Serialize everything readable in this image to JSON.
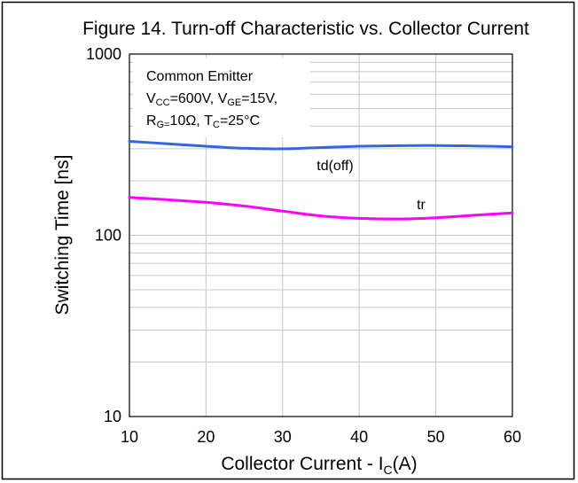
{
  "chart_data": {
    "type": "line",
    "title": "Figure 14. Turn-off Characteristic vs. Collector Current",
    "xlabel_main": "Collector  Current - I",
    "xlabel_sub": "C",
    "xlabel_tail": "(A)",
    "ylabel": "Switching Time [ns]",
    "x_ticks": [
      "10",
      "20",
      "30",
      "40",
      "50",
      "60"
    ],
    "y_ticks": [
      "10",
      "100",
      "1000"
    ],
    "xlim": [
      10,
      60
    ],
    "ylim": [
      10,
      1000
    ],
    "y_scale": "log",
    "grid": true,
    "annotation": {
      "line1": "Common Emitter",
      "line2": {
        "v1": "V",
        "v1_sub": "CC",
        "v1_val": "=600V, ",
        "v2": "V",
        "v2_sub": "GE",
        "v2_val": "=15V,"
      },
      "line3": {
        "r": "R",
        "r_sub": "G=",
        "r_val": "10Ω,  ",
        "t": "T",
        "t_sub": "C",
        "t_val": "=25°C"
      }
    },
    "series": [
      {
        "name": "td(off)",
        "color": "#3366e0",
        "x": [
          10,
          15,
          20,
          25,
          30,
          35,
          40,
          45,
          50,
          55,
          60
        ],
        "y": [
          330,
          320,
          310,
          302,
          300,
          305,
          310,
          312,
          313,
          311,
          308
        ]
      },
      {
        "name": "tr",
        "color": "#ff00ff",
        "x": [
          10,
          15,
          20,
          25,
          30,
          35,
          40,
          45,
          50,
          55,
          60
        ],
        "y": [
          162,
          157,
          152,
          145,
          136,
          128,
          124,
          123,
          125,
          129,
          133
        ]
      }
    ]
  }
}
